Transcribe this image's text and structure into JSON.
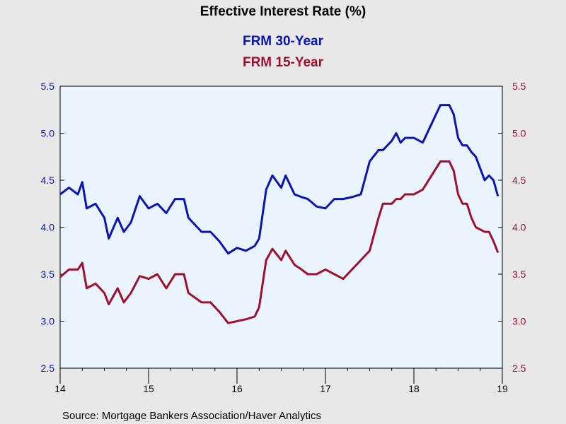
{
  "chart_data": {
    "type": "line",
    "title": "Effective Interest Rate (%)",
    "source": "Source:  Mortgage Bankers Association/Haver Analytics",
    "ylim": [
      2.5,
      5.5
    ],
    "yticks": [
      "5.5",
      "5.0",
      "4.5",
      "4.0",
      "3.5",
      "3.0",
      "2.5"
    ],
    "yticks_right": [
      "5.5",
      "5.0",
      "4.5",
      "4.0",
      "3.5",
      "3.0",
      "2.5"
    ],
    "xlim": [
      2014,
      2019
    ],
    "xticks": [
      "14",
      "15",
      "16",
      "17",
      "18",
      "19"
    ],
    "legend_position": "top-center",
    "plot_background": "#eaf4ff",
    "grid": false,
    "series": [
      {
        "name": "FRM 30-Year",
        "color": "#0a14b4",
        "x": [
          2014.0,
          2014.1,
          2014.2,
          2014.25,
          2014.3,
          2014.4,
          2014.5,
          2014.55,
          2014.65,
          2014.72,
          2014.8,
          2014.9,
          2015.0,
          2015.1,
          2015.2,
          2015.3,
          2015.4,
          2015.45,
          2015.6,
          2015.7,
          2015.8,
          2015.9,
          2016.0,
          2016.1,
          2016.2,
          2016.25,
          2016.33,
          2016.4,
          2016.5,
          2016.55,
          2016.65,
          2016.73,
          2016.8,
          2016.9,
          2017.0,
          2017.1,
          2017.2,
          2017.3,
          2017.4,
          2017.5,
          2017.6,
          2017.65,
          2017.75,
          2017.8,
          2017.85,
          2017.9,
          2018.0,
          2018.1,
          2018.2,
          2018.3,
          2018.4,
          2018.45,
          2018.5,
          2018.55,
          2018.6,
          2018.65,
          2018.7,
          2018.8,
          2018.85,
          2018.9,
          2018.95
        ],
        "values": [
          4.35,
          4.42,
          4.35,
          4.48,
          4.2,
          4.25,
          4.1,
          3.88,
          4.1,
          3.95,
          4.05,
          4.33,
          4.2,
          4.25,
          4.15,
          4.3,
          4.3,
          4.1,
          3.95,
          3.95,
          3.85,
          3.72,
          3.78,
          3.75,
          3.8,
          3.88,
          4.4,
          4.55,
          4.42,
          4.55,
          4.35,
          4.32,
          4.3,
          4.22,
          4.2,
          4.3,
          4.3,
          4.32,
          4.35,
          4.7,
          4.82,
          4.82,
          4.92,
          5.0,
          4.9,
          4.95,
          4.95,
          4.9,
          5.1,
          5.3,
          5.3,
          5.2,
          4.95,
          4.87,
          4.87,
          4.8,
          4.75,
          4.5,
          4.55,
          4.5,
          4.33
        ]
      },
      {
        "name": "FRM 15-Year",
        "color": "#a0102e",
        "x": [
          2014.0,
          2014.1,
          2014.2,
          2014.25,
          2014.3,
          2014.4,
          2014.5,
          2014.55,
          2014.65,
          2014.72,
          2014.8,
          2014.9,
          2015.0,
          2015.1,
          2015.2,
          2015.3,
          2015.4,
          2015.45,
          2015.6,
          2015.7,
          2015.8,
          2015.9,
          2016.0,
          2016.1,
          2016.2,
          2016.25,
          2016.33,
          2016.4,
          2016.5,
          2016.55,
          2016.65,
          2016.73,
          2016.8,
          2016.9,
          2017.0,
          2017.1,
          2017.2,
          2017.3,
          2017.4,
          2017.5,
          2017.6,
          2017.65,
          2017.75,
          2017.8,
          2017.85,
          2017.9,
          2018.0,
          2018.1,
          2018.2,
          2018.3,
          2018.4,
          2018.45,
          2018.5,
          2018.55,
          2018.6,
          2018.65,
          2018.7,
          2018.8,
          2018.85,
          2018.9,
          2018.95
        ],
        "values": [
          3.47,
          3.55,
          3.55,
          3.62,
          3.35,
          3.4,
          3.3,
          3.18,
          3.35,
          3.2,
          3.3,
          3.48,
          3.45,
          3.5,
          3.35,
          3.5,
          3.5,
          3.3,
          3.2,
          3.2,
          3.1,
          2.98,
          3.0,
          3.02,
          3.05,
          3.15,
          3.65,
          3.77,
          3.65,
          3.75,
          3.6,
          3.55,
          3.5,
          3.5,
          3.55,
          3.5,
          3.45,
          3.55,
          3.65,
          3.75,
          4.1,
          4.25,
          4.25,
          4.3,
          4.3,
          4.35,
          4.35,
          4.4,
          4.55,
          4.7,
          4.7,
          4.6,
          4.35,
          4.25,
          4.25,
          4.1,
          4.0,
          3.95,
          3.95,
          3.85,
          3.73
        ]
      }
    ]
  }
}
